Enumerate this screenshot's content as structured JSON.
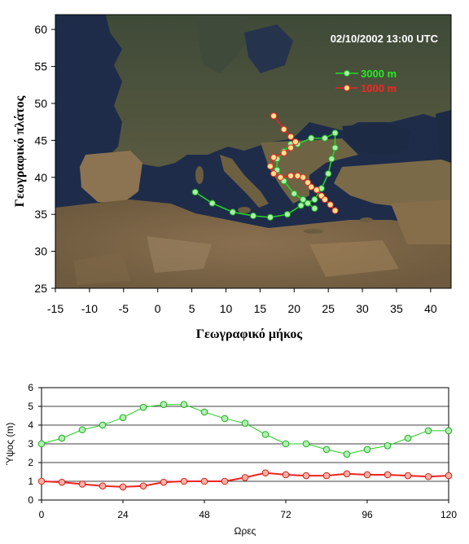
{
  "chart_data": [
    {
      "type": "line",
      "title": "",
      "annotation": "02/10/2002 13:00 UTC",
      "xlabel": "Γεωγραφικό μήκος",
      "ylabel": "Γεωγραφικό πλάτος",
      "xlim": [
        -15,
        43
      ],
      "ylim": [
        25,
        62
      ],
      "xticks": [
        -15,
        -10,
        -5,
        0,
        5,
        10,
        15,
        20,
        25,
        30,
        35,
        40
      ],
      "yticks": [
        25,
        30,
        35,
        40,
        45,
        50,
        55,
        60
      ],
      "background": "satellite-map-europe-mediterranean",
      "legend_position": "top-right",
      "series": [
        {
          "name": "3000 m",
          "color": "#22dd22",
          "points": [
            [
              5.5,
              38
            ],
            [
              8,
              36.5
            ],
            [
              11,
              35.3
            ],
            [
              14,
              34.8
            ],
            [
              16.5,
              34.6
            ],
            [
              19,
              35
            ],
            [
              21,
              36.2
            ],
            [
              23,
              37
            ],
            [
              24,
              38.5
            ],
            [
              25,
              40.5
            ],
            [
              25.5,
              42.5
            ],
            [
              26,
              44
            ],
            [
              26,
              46
            ],
            [
              24.5,
              45.3
            ],
            [
              22.5,
              45.3
            ],
            [
              20.5,
              44.5
            ],
            [
              19.5,
              44.5
            ],
            [
              18.5,
              43.5
            ],
            [
              17.5,
              42.5
            ],
            [
              17.5,
              41
            ],
            [
              18.5,
              39.5
            ],
            [
              20,
              37.8
            ],
            [
              21.3,
              37
            ],
            [
              22,
              36.5
            ],
            [
              23,
              35.8
            ]
          ]
        },
        {
          "name": "1000 m",
          "color": "#ee2222",
          "points": [
            [
              17,
              48.3
            ],
            [
              18.5,
              46.5
            ],
            [
              19.5,
              45.5
            ],
            [
              20.2,
              44.8
            ],
            [
              19.5,
              44
            ],
            [
              18.5,
              43.3
            ],
            [
              17,
              42.7
            ],
            [
              16.5,
              41.5
            ],
            [
              17,
              40.5
            ],
            [
              18,
              40
            ],
            [
              19.5,
              40.2
            ],
            [
              20.5,
              40.2
            ],
            [
              21.3,
              40
            ],
            [
              22,
              39.3
            ],
            [
              22.5,
              38.7
            ],
            [
              23.3,
              38.3
            ],
            [
              24,
              37.5
            ],
            [
              24.5,
              37
            ],
            [
              25.3,
              36.3
            ],
            [
              26,
              35.5
            ]
          ]
        }
      ]
    },
    {
      "type": "line",
      "title": "",
      "xlabel": "Ωρες",
      "ylabel": "Ύψος (m)",
      "xlim": [
        0,
        120
      ],
      "ylim": [
        0,
        6
      ],
      "xticks": [
        0,
        24,
        48,
        72,
        96,
        120
      ],
      "yticks": [
        0,
        1,
        2,
        3,
        4,
        5,
        6
      ],
      "grid": "horizontal",
      "series": [
        {
          "name": "3000 m",
          "color": "#22cc22",
          "x": [
            0,
            6,
            12,
            18,
            24,
            30,
            36,
            42,
            48,
            54,
            60,
            66,
            72,
            78,
            84,
            90,
            96,
            102,
            108,
            114,
            120
          ],
          "values": [
            3.0,
            3.3,
            3.75,
            4.0,
            4.4,
            4.95,
            5.1,
            5.1,
            4.7,
            4.35,
            4.1,
            3.5,
            3.0,
            3.0,
            2.7,
            2.45,
            2.7,
            2.9,
            3.3,
            3.7,
            3.7
          ]
        },
        {
          "name": "1000 m",
          "color": "#ee2222",
          "x": [
            0,
            6,
            12,
            18,
            24,
            30,
            36,
            42,
            48,
            54,
            60,
            66,
            72,
            78,
            84,
            90,
            96,
            102,
            108,
            114,
            120
          ],
          "values": [
            1.0,
            0.95,
            0.85,
            0.75,
            0.7,
            0.75,
            0.95,
            1.0,
            1.0,
            1.0,
            1.2,
            1.45,
            1.35,
            1.3,
            1.3,
            1.4,
            1.35,
            1.35,
            1.3,
            1.25,
            1.3
          ]
        }
      ]
    }
  ]
}
